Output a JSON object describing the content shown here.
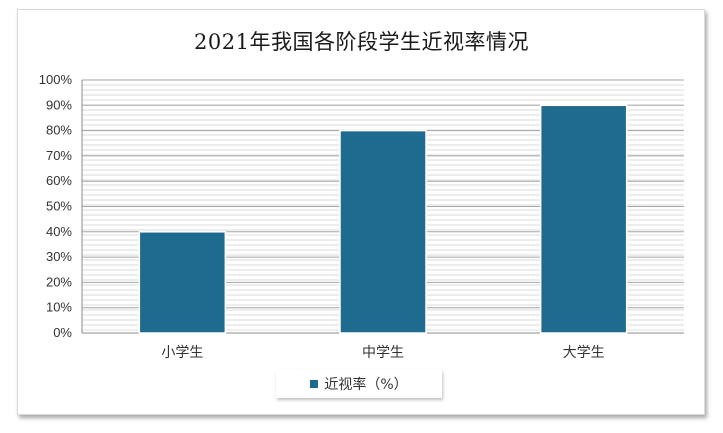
{
  "chart_data": {
    "type": "bar",
    "title": "2021年我国各阶段学生近视率情况",
    "categories": [
      "小学生",
      "中学生",
      "大学生"
    ],
    "series": [
      {
        "name": "近视率（%）",
        "values": [
          40,
          80,
          90
        ]
      }
    ],
    "ylim": [
      0,
      100
    ],
    "yticks": [
      "0%",
      "10%",
      "20%",
      "30%",
      "40%",
      "50%",
      "60%",
      "70%",
      "80%",
      "90%",
      "100%"
    ],
    "grid": true,
    "legend_position": "bottom",
    "bar_color": "#1f6b8f"
  }
}
